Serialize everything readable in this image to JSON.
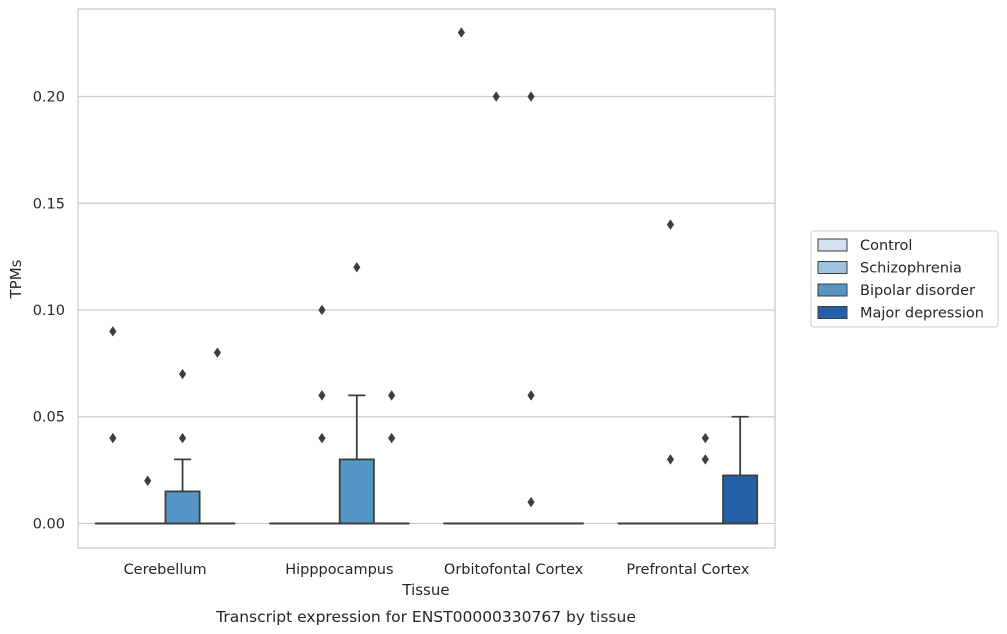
{
  "chart_data": {
    "type": "box",
    "title": "",
    "caption": "Transcript expression for ENST00000330767 by tissue",
    "xlabel": "Tissue",
    "ylabel": "TPMs",
    "ylim": [
      -0.0115,
      0.241
    ],
    "yticks": [
      "0.00",
      "0.05",
      "0.10",
      "0.15",
      "0.20"
    ],
    "categories": [
      "Cerebellum",
      "Hipppocampus",
      "Orbitofontal Cortex",
      "Prefrontal Cortex"
    ],
    "grid": "horizontal",
    "legend_position": "right",
    "series": [
      {
        "name": "Control",
        "color": "#d3e0ef"
      },
      {
        "name": "Schizophrenia",
        "color": "#9dc3de"
      },
      {
        "name": "Bipolar disorder",
        "color": "#5497c5"
      },
      {
        "name": "Major depression",
        "color": "#2460a7"
      }
    ],
    "boxes": [
      {
        "category": 0,
        "series": 0,
        "q1": 0,
        "median": 0,
        "q3": 0,
        "whisker_low": 0,
        "whisker_high": 0,
        "outliers": [
          0.04,
          0.09
        ]
      },
      {
        "category": 0,
        "series": 1,
        "q1": 0,
        "median": 0,
        "q3": 0,
        "whisker_low": 0,
        "whisker_high": 0,
        "outliers": [
          0.02
        ]
      },
      {
        "category": 0,
        "series": 2,
        "q1": 0,
        "median": 0,
        "q3": 0.015,
        "whisker_low": 0,
        "whisker_high": 0.03,
        "outliers": [
          0.04,
          0.07
        ]
      },
      {
        "category": 0,
        "series": 3,
        "q1": 0,
        "median": 0,
        "q3": 0,
        "whisker_low": 0,
        "whisker_high": 0,
        "outliers": [
          0.08
        ]
      },
      {
        "category": 1,
        "series": 0,
        "q1": 0,
        "median": 0,
        "q3": 0,
        "whisker_low": 0,
        "whisker_high": 0,
        "outliers": []
      },
      {
        "category": 1,
        "series": 1,
        "q1": 0,
        "median": 0,
        "q3": 0,
        "whisker_low": 0,
        "whisker_high": 0,
        "outliers": [
          0.04,
          0.06,
          0.1
        ]
      },
      {
        "category": 1,
        "series": 2,
        "q1": 0,
        "median": 0,
        "q3": 0.03,
        "whisker_low": 0,
        "whisker_high": 0.06,
        "outliers": [
          0.12
        ]
      },
      {
        "category": 1,
        "series": 3,
        "q1": 0,
        "median": 0,
        "q3": 0,
        "whisker_low": 0,
        "whisker_high": 0,
        "outliers": [
          0.04,
          0.06
        ]
      },
      {
        "category": 2,
        "series": 0,
        "q1": 0,
        "median": 0,
        "q3": 0,
        "whisker_low": 0,
        "whisker_high": 0,
        "outliers": [
          0.23
        ]
      },
      {
        "category": 2,
        "series": 1,
        "q1": 0,
        "median": 0,
        "q3": 0,
        "whisker_low": 0,
        "whisker_high": 0,
        "outliers": [
          0.2
        ]
      },
      {
        "category": 2,
        "series": 2,
        "q1": 0,
        "median": 0,
        "q3": 0,
        "whisker_low": 0,
        "whisker_high": 0,
        "outliers": [
          0.01,
          0.06,
          0.2
        ]
      },
      {
        "category": 2,
        "series": 3,
        "q1": 0,
        "median": 0,
        "q3": 0,
        "whisker_low": 0,
        "whisker_high": 0,
        "outliers": []
      },
      {
        "category": 3,
        "series": 0,
        "q1": 0,
        "median": 0,
        "q3": 0,
        "whisker_low": 0,
        "whisker_high": 0,
        "outliers": []
      },
      {
        "category": 3,
        "series": 1,
        "q1": 0,
        "median": 0,
        "q3": 0,
        "whisker_low": 0,
        "whisker_high": 0,
        "outliers": [
          0.03,
          0.14
        ]
      },
      {
        "category": 3,
        "series": 2,
        "q1": 0,
        "median": 0,
        "q3": 0,
        "whisker_low": 0,
        "whisker_high": 0,
        "outliers": [
          0.03,
          0.04
        ]
      },
      {
        "category": 3,
        "series": 3,
        "q1": 0,
        "median": 0,
        "q3": 0.0225,
        "whisker_low": 0,
        "whisker_high": 0.05,
        "outliers": []
      }
    ]
  }
}
